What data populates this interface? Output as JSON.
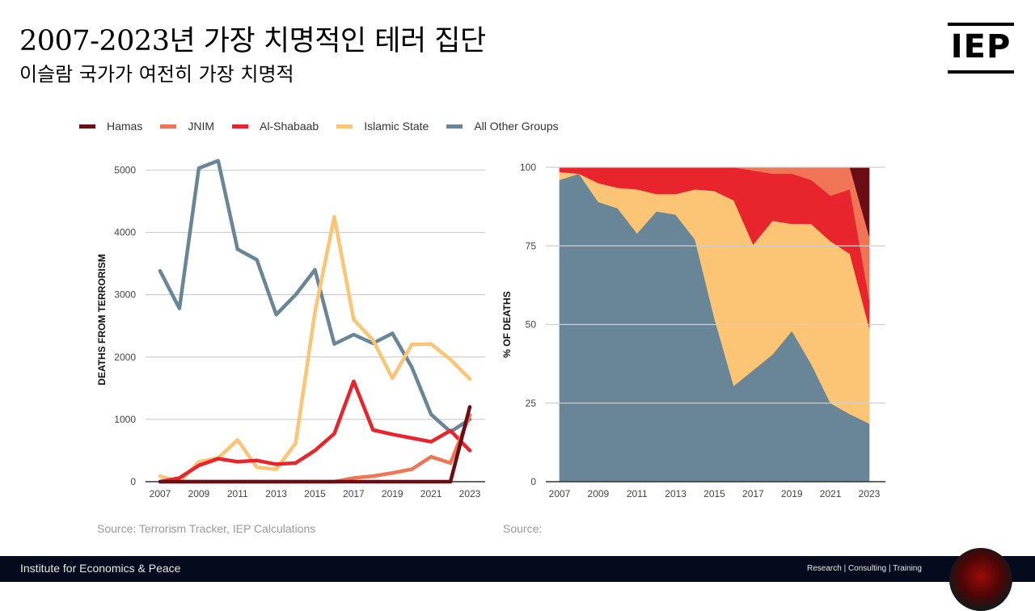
{
  "header": {
    "title": "2007-2023년 가장 치명적인 테러 집단",
    "subtitle": "이슬람 국가가 여전히 가장 치명적",
    "logo_text": "IEP"
  },
  "legend": [
    {
      "name": "Hamas",
      "color": "#6b0d14"
    },
    {
      "name": "JNIM",
      "color": "#ef7556"
    },
    {
      "name": "Al-Shabaab",
      "color": "#e8242c"
    },
    {
      "name": "Islamic State",
      "color": "#fbc575"
    },
    {
      "name": "All Other Groups",
      "color": "#688697"
    }
  ],
  "chart_data": [
    {
      "type": "line",
      "title": "",
      "xlabel": "",
      "ylabel": "DEATHS FROM TERRORISM",
      "x": [
        2007,
        2008,
        2009,
        2010,
        2011,
        2012,
        2013,
        2014,
        2015,
        2016,
        2017,
        2018,
        2019,
        2020,
        2021,
        2022,
        2023
      ],
      "xticks": [
        "2007",
        "2009",
        "2011",
        "2013",
        "2015",
        "2017",
        "2019",
        "2021",
        "2023"
      ],
      "yticks": [
        "0",
        "1000",
        "2000",
        "3000",
        "4000",
        "5000"
      ],
      "ylim": [
        0,
        5200
      ],
      "series": [
        {
          "name": "All Other Groups",
          "color": "#688697",
          "values": [
            3380,
            2780,
            5030,
            5150,
            3730,
            3560,
            2680,
            3000,
            3400,
            2210,
            2360,
            2220,
            2380,
            1840,
            1080,
            800,
            1000
          ]
        },
        {
          "name": "Islamic State",
          "color": "#fbc575",
          "values": [
            90,
            0,
            320,
            380,
            670,
            230,
            200,
            620,
            2720,
            4250,
            2600,
            2270,
            1660,
            2200,
            2210,
            1960,
            1650
          ]
        },
        {
          "name": "Al-Shabaab",
          "color": "#e8242c",
          "values": [
            0,
            60,
            260,
            370,
            320,
            340,
            280,
            300,
            500,
            770,
            1610,
            830,
            760,
            700,
            640,
            820,
            500
          ]
        },
        {
          "name": "JNIM",
          "color": "#ef7556",
          "values": [
            0,
            0,
            0,
            0,
            0,
            0,
            0,
            0,
            0,
            0,
            60,
            90,
            140,
            200,
            400,
            300,
            1070
          ]
        },
        {
          "name": "Hamas",
          "color": "#6b0d14",
          "values": [
            0,
            0,
            0,
            0,
            0,
            0,
            0,
            0,
            0,
            0,
            0,
            0,
            0,
            0,
            0,
            0,
            1200
          ]
        }
      ]
    },
    {
      "type": "area",
      "stacked": true,
      "title": "",
      "xlabel": "",
      "ylabel": "% OF DEATHS",
      "x": [
        2007,
        2008,
        2009,
        2010,
        2011,
        2012,
        2013,
        2014,
        2015,
        2016,
        2017,
        2018,
        2019,
        2020,
        2021,
        2022,
        2023
      ],
      "xticks": [
        "2007",
        "2009",
        "2011",
        "2013",
        "2015",
        "2017",
        "2019",
        "2021",
        "2023"
      ],
      "yticks": [
        "0",
        "25",
        "50",
        "75",
        "100"
      ],
      "ylim": [
        0,
        100
      ],
      "series": [
        {
          "name": "All Other Groups",
          "color": "#688697",
          "values": [
            96,
            98,
            89,
            87,
            79,
            86,
            85,
            77,
            52,
            30.5,
            35.5,
            40.5,
            48,
            37.5,
            25,
            21.5,
            18.5
          ]
        },
        {
          "name": "Islamic State",
          "color": "#fbc575",
          "values": [
            2.5,
            0,
            6,
            6.5,
            14,
            5.5,
            6.5,
            16,
            40.5,
            59,
            40,
            42.5,
            34,
            44.5,
            51.5,
            51,
            30.5
          ]
        },
        {
          "name": "Al-Shabaab",
          "color": "#e8242c",
          "values": [
            1.5,
            2,
            5,
            6.5,
            7,
            8.5,
            8.5,
            7,
            7.5,
            10.5,
            23.5,
            15,
            16,
            14,
            14.5,
            20.5,
            9
          ]
        },
        {
          "name": "JNIM",
          "color": "#ef7556",
          "values": [
            0,
            0,
            0,
            0,
            0,
            0,
            0,
            0,
            0,
            0,
            1,
            2,
            2,
            4,
            9,
            7,
            20
          ]
        },
        {
          "name": "Hamas",
          "color": "#6b0d14",
          "values": [
            0,
            0,
            0,
            0,
            0,
            0,
            0,
            0,
            0,
            0,
            0,
            0,
            0,
            0,
            0,
            0,
            22
          ]
        }
      ]
    }
  ],
  "sources": {
    "left": "Source: Terrorism Tracker, IEP Calculations",
    "right": "Source:"
  },
  "footer": {
    "org": "Institute for Economics & Peace",
    "tagline": "Research  |  Consulting  |  Training"
  }
}
